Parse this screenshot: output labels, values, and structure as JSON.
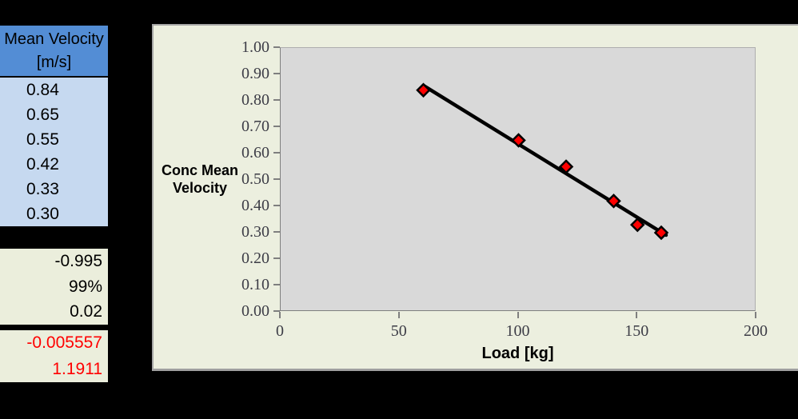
{
  "left_panel": {
    "header": {
      "line1": "Mean Velocity",
      "line2": "[m/s]"
    },
    "velocity_values": [
      "0.84",
      "0.65",
      "0.55",
      "0.42",
      "0.33",
      "0.30"
    ],
    "stats_values": [
      "-0.995",
      "99%",
      "0.02"
    ],
    "regression_values": [
      "-0.005557",
      "1.1911"
    ]
  },
  "colors": {
    "header_blue": "#538dd5",
    "cell_light_blue": "#c6d9f0",
    "cell_cream": "#ebeedc",
    "chart_background": "#ecefdf",
    "plot_background": "#d9d9d9",
    "marker_red": "#ff0000",
    "trendline_black": "#000000",
    "regression_text_red": "#ff0000"
  },
  "chart_data": {
    "type": "scatter",
    "x": [
      60,
      100,
      120,
      140,
      150,
      160
    ],
    "y": [
      0.84,
      0.65,
      0.55,
      0.42,
      0.33,
      0.3
    ],
    "xlabel": "Load [kg]",
    "ylabel": "Conc Mean Velocity",
    "ylabel_lines": [
      "Conc Mean",
      "Velocity"
    ],
    "xlim": [
      0,
      200
    ],
    "ylim": [
      0,
      1
    ],
    "x_ticks": [
      0,
      50,
      100,
      150,
      200
    ],
    "x_tick_labels": [
      "0",
      "50",
      "100",
      "150",
      "200"
    ],
    "y_ticks": [
      0,
      0.1,
      0.2,
      0.3,
      0.4,
      0.5,
      0.6,
      0.7,
      0.8,
      0.9,
      1
    ],
    "y_tick_labels": [
      "0.00",
      "0.10",
      "0.20",
      "0.30",
      "0.40",
      "0.50",
      "0.60",
      "0.70",
      "0.80",
      "0.90",
      "1.00"
    ],
    "grid": false,
    "legend": false,
    "marker": {
      "shape": "diamond",
      "fill": "#ff0000",
      "stroke": "#000000"
    },
    "trendline": {
      "slope": -0.005557,
      "intercept": 1.1911,
      "x_start": 60,
      "x_end": 162,
      "color": "#000000"
    }
  }
}
